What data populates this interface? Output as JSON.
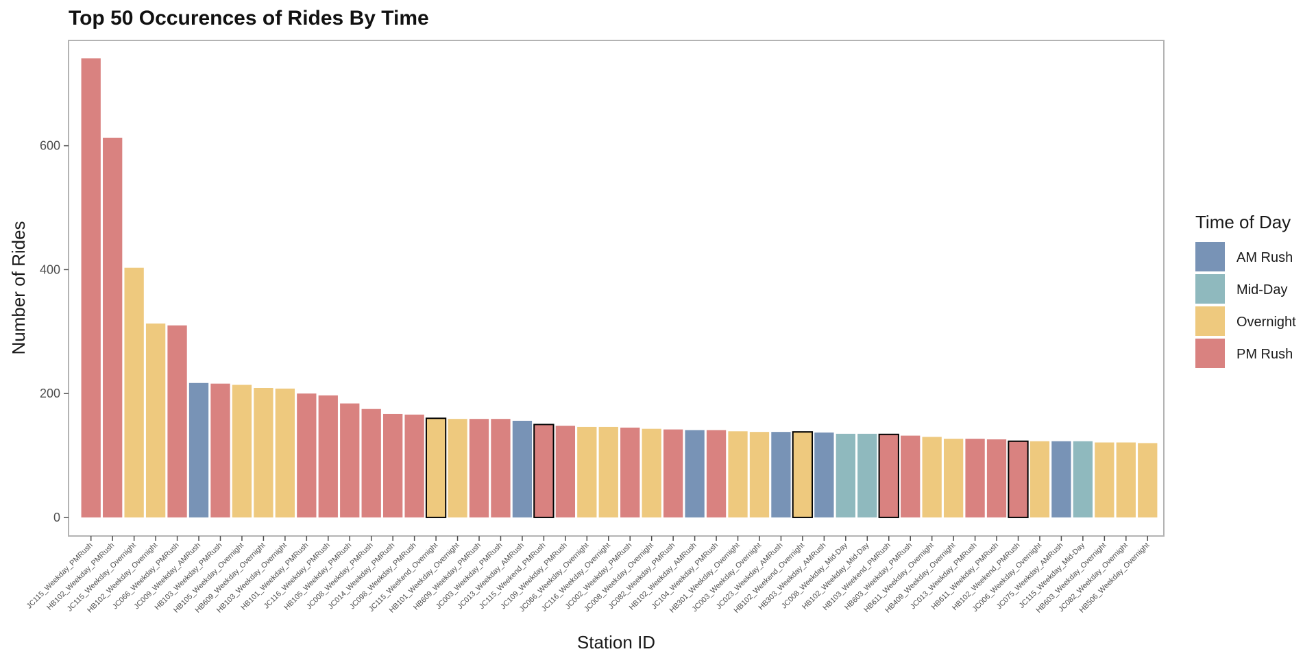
{
  "chart_data": {
    "type": "bar",
    "title": "Top 50 Occurences of Rides By Time",
    "xlabel": "Station ID",
    "ylabel": "Number of Rides",
    "ylim": [
      -30,
      770
    ],
    "yticks": [
      0,
      200,
      400,
      600
    ],
    "grid": false,
    "legend_position": "right",
    "legend_title": "Time of Day",
    "legend": [
      {
        "name": "AM Rush",
        "color": "#7893b6"
      },
      {
        "name": "Mid-Day",
        "color": "#8fb9be"
      },
      {
        "name": "Overnight",
        "color": "#eec97e"
      },
      {
        "name": "PM Rush",
        "color": "#d98280"
      }
    ],
    "categories": [
      "JC115_Weekday_PMRush",
      "HB102_Weekday_PMRush",
      "JC115_Weekday_Overnight",
      "HB102_Weekday_Overnight",
      "JC066_Weekday_PMRush",
      "JC009_Weekday_AMRush",
      "HB103_Weekday_PMRush",
      "HB105_Weekday_Overnight",
      "HB609_Weekday_Overnight",
      "HB103_Weekday_Overnight",
      "HB101_Weekday_PMRush",
      "JC116_Weekday_PMRush",
      "HB105_Weekday_PMRush",
      "JC008_Weekday_PMRush",
      "JC014_Weekday_PMRush",
      "JC098_Weekday_PMRush",
      "JC115_Weekend_Overnight",
      "HB101_Weekday_Overnight",
      "HB609_Weekday_PMRush",
      "JC003_Weekday_PMRush",
      "JC013_Weekday_AMRush",
      "JC115_Weekend_PMRush",
      "JC109_Weekday_PMRush",
      "JC066_Weekday_Overnight",
      "JC116_Weekday_Overnight",
      "JC002_Weekday_PMRush",
      "JC008_Weekday_Overnight",
      "JC082_Weekday_PMRush",
      "HB102_Weekday_AMRush",
      "JC104_Weekday_PMRush",
      "HB301_Weekday_Overnight",
      "JC003_Weekday_Overnight",
      "JC023_Weekday_AMRush",
      "HB102_Weekend_Overnight",
      "HB303_Weekday_AMRush",
      "JC008_Weekday_Mid-Day",
      "HB102_Weekday_Mid-Day",
      "HB103_Weekend_PMRush",
      "HB603_Weekday_PMRush",
      "HB611_Weekday_Overnight",
      "HB409_Weekday_Overnight",
      "JC013_Weekday_PMRush",
      "HB611_Weekday_PMRush",
      "HB102_Weekend_PMRush",
      "JC006_Weekday_Overnight",
      "JC075_Weekday_AMRush",
      "JC115_Weekday_Mid-Day",
      "HB603_Weekday_Overnight",
      "JC082_Weekday_Overnight",
      "HB506_Weekday_Overnight"
    ],
    "values": [
      741,
      613,
      403,
      313,
      310,
      217,
      216,
      214,
      209,
      208,
      200,
      197,
      184,
      175,
      167,
      166,
      160,
      159,
      159,
      159,
      156,
      150,
      148,
      146,
      146,
      145,
      143,
      142,
      141,
      141,
      139,
      138,
      138,
      138,
      137,
      135,
      135,
      134,
      132,
      130,
      127,
      127,
      126,
      123,
      123,
      123,
      123,
      121,
      121,
      120
    ],
    "groups": [
      "PM Rush",
      "PM Rush",
      "Overnight",
      "Overnight",
      "PM Rush",
      "AM Rush",
      "PM Rush",
      "Overnight",
      "Overnight",
      "Overnight",
      "PM Rush",
      "PM Rush",
      "PM Rush",
      "PM Rush",
      "PM Rush",
      "PM Rush",
      "Overnight",
      "Overnight",
      "PM Rush",
      "PM Rush",
      "AM Rush",
      "PM Rush",
      "PM Rush",
      "Overnight",
      "Overnight",
      "PM Rush",
      "Overnight",
      "PM Rush",
      "AM Rush",
      "PM Rush",
      "Overnight",
      "Overnight",
      "AM Rush",
      "Overnight",
      "AM Rush",
      "Mid-Day",
      "Mid-Day",
      "PM Rush",
      "PM Rush",
      "Overnight",
      "Overnight",
      "PM Rush",
      "PM Rush",
      "PM Rush",
      "Overnight",
      "AM Rush",
      "Mid-Day",
      "Overnight",
      "Overnight",
      "Overnight"
    ],
    "weekend": [
      false,
      false,
      false,
      false,
      false,
      false,
      false,
      false,
      false,
      false,
      false,
      false,
      false,
      false,
      false,
      false,
      true,
      false,
      false,
      false,
      false,
      true,
      false,
      false,
      false,
      false,
      false,
      false,
      false,
      false,
      false,
      false,
      false,
      true,
      false,
      false,
      false,
      true,
      false,
      false,
      false,
      false,
      false,
      true,
      false,
      false,
      false,
      false,
      false,
      false
    ]
  }
}
